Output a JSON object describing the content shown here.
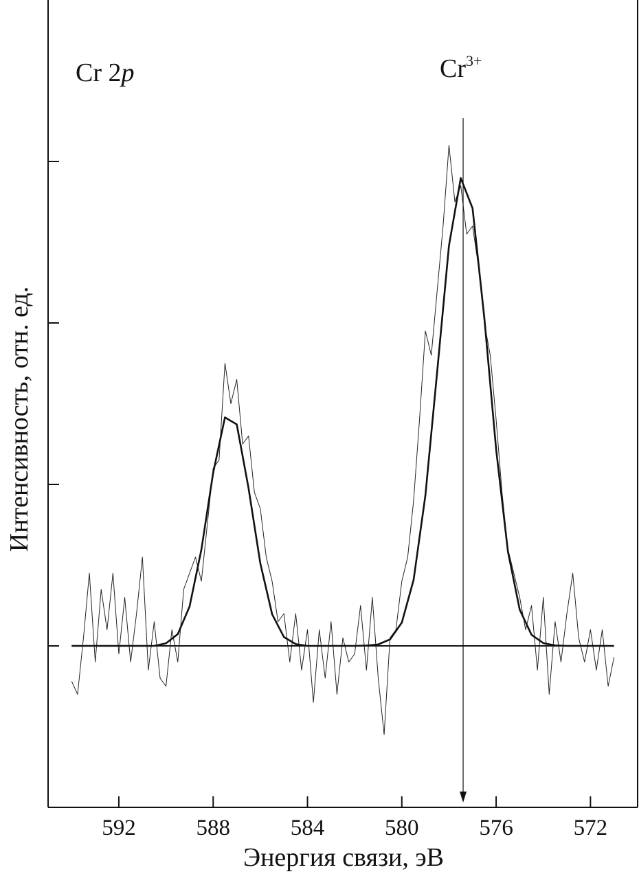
{
  "chart_data": {
    "type": "line",
    "xlabel": "Энергия связи, эВ",
    "ylabel": "Интенсивность, отн. ед.",
    "label_left": [
      "Cr 2",
      "p"
    ],
    "peak_label": [
      "Cr",
      "3+"
    ],
    "marker_x": 577.4,
    "baseline": 0,
    "xlim": [
      595,
      570
    ],
    "xticks": [
      592,
      588,
      584,
      580,
      576,
      572
    ],
    "ylim": [
      -1,
      4
    ],
    "yticks": [
      0,
      1,
      2,
      3
    ],
    "series": [
      {
        "color": "#222222",
        "linewidth": 1,
        "x": [
          594,
          593.75,
          593.5,
          593.25,
          593,
          592.75,
          592.5,
          592.25,
          592,
          591.75,
          591.5,
          591.25,
          591,
          590.75,
          590.5,
          590.25,
          590,
          589.75,
          589.5,
          589.25,
          589,
          588.75,
          588.5,
          588.25,
          588,
          587.75,
          587.5,
          587.25,
          587,
          586.75,
          586.5,
          586.25,
          586,
          585.75,
          585.5,
          585.25,
          585,
          584.75,
          584.5,
          584.25,
          584,
          583.75,
          583.5,
          583.25,
          583,
          582.75,
          582.5,
          582.25,
          582,
          581.75,
          581.5,
          581.25,
          581,
          580.75,
          580.5,
          580.25,
          580,
          579.75,
          579.5,
          579.25,
          579,
          578.75,
          578.5,
          578.25,
          578,
          577.75,
          577.5,
          577.25,
          577,
          576.75,
          576.5,
          576.25,
          576,
          575.75,
          575.5,
          575.25,
          575,
          574.75,
          574.5,
          574.25,
          574,
          573.75,
          573.5,
          573.25,
          573,
          572.75,
          572.5,
          572.25,
          572,
          571.75,
          571.5,
          571.25,
          571
        ],
        "values": [
          -0.22,
          -0.3,
          0.05,
          0.45,
          -0.1,
          0.35,
          0.1,
          0.45,
          -0.05,
          0.3,
          -0.1,
          0.2,
          0.55,
          -0.15,
          0.15,
          -0.2,
          -0.25,
          0.1,
          -0.1,
          0.35,
          0.45,
          0.55,
          0.4,
          0.75,
          1.1,
          1.15,
          1.75,
          1.5,
          1.65,
          1.25,
          1.3,
          0.95,
          0.85,
          0.55,
          0.4,
          0.15,
          0.2,
          -0.1,
          0.2,
          -0.15,
          0.1,
          -0.35,
          0.1,
          -0.2,
          0.15,
          -0.3,
          0.05,
          -0.1,
          -0.05,
          0.25,
          -0.15,
          0.3,
          -0.2,
          -0.55,
          0.05,
          0.1,
          0.4,
          0.55,
          0.9,
          1.4,
          1.95,
          1.8,
          2.2,
          2.6,
          3.1,
          2.75,
          2.85,
          2.55,
          2.6,
          2.35,
          2.0,
          1.8,
          1.4,
          0.95,
          0.6,
          0.45,
          0.3,
          0.1,
          0.25,
          -0.15,
          0.3,
          -0.3,
          0.15,
          -0.1,
          0.2,
          0.45,
          0.05,
          -0.1,
          0.1,
          -0.15,
          0.1,
          -0.25,
          -0.07
        ]
      },
      {
        "color": "#111111",
        "linewidth": 2.6,
        "x": [
          594,
          593.5,
          593,
          592.5,
          592,
          591.5,
          591,
          590.5,
          590,
          589.5,
          589,
          588.5,
          588,
          587.5,
          587,
          586.5,
          586,
          585.5,
          585,
          584.5,
          584,
          583.5,
          583,
          582.5,
          582,
          581.5,
          581,
          580.5,
          580,
          579.5,
          579,
          578.5,
          578,
          577.5,
          577,
          576.5,
          576,
          575.5,
          575,
          574.5,
          574,
          573.5,
          573,
          572.5,
          572,
          571.5,
          571
        ],
        "values": [
          0,
          0,
          0,
          0,
          0,
          0,
          0,
          0,
          0.016,
          0.073,
          0.244,
          0.596,
          1.072,
          1.415,
          1.372,
          0.977,
          0.511,
          0.196,
          0.055,
          0.011,
          0,
          0,
          0,
          0,
          0,
          0.002,
          0.009,
          0.04,
          0.144,
          0.409,
          0.932,
          1.699,
          2.479,
          2.897,
          2.71,
          2.03,
          1.217,
          0.584,
          0.224,
          0.069,
          0.017,
          0.003,
          0,
          0,
          0,
          0,
          0
        ]
      }
    ]
  }
}
